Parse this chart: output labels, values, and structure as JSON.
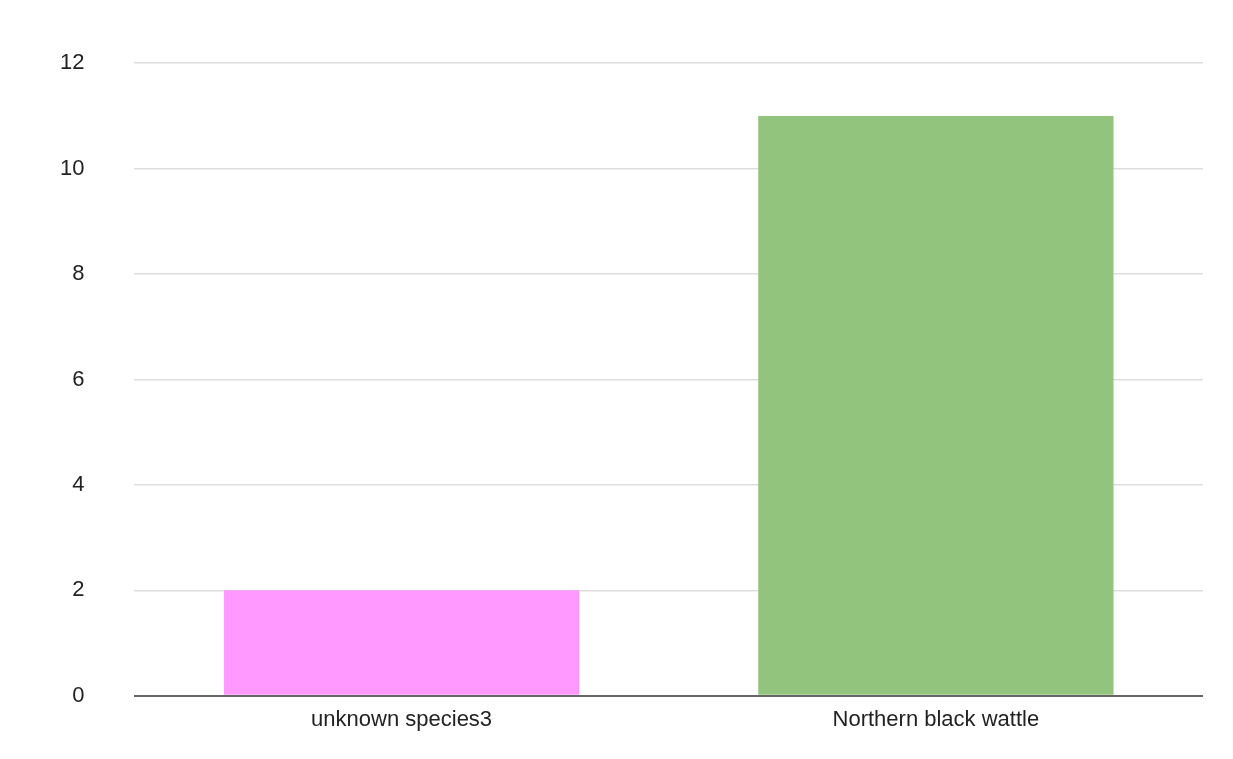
{
  "chart_data": {
    "type": "bar",
    "categories": [
      "unknown species3",
      "Northern black wattle"
    ],
    "values": [
      2,
      11
    ],
    "colors": [
      "#ff99ff",
      "#93c47d"
    ],
    "ylim": [
      0,
      12
    ],
    "yticks": [
      0,
      2,
      4,
      6,
      8,
      10,
      12
    ],
    "grid": "y",
    "legend": false
  }
}
